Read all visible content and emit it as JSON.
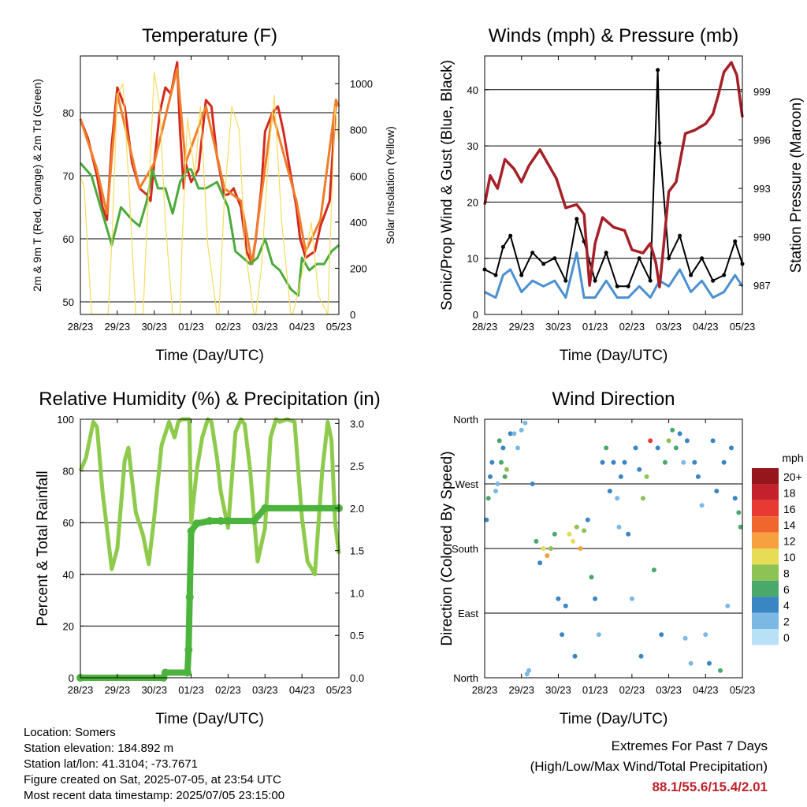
{
  "chart_data": [
    {
      "type": "line",
      "title": "Temperature (F)",
      "xlabel": "Time (Day/UTC)",
      "ylabel": "2m & 9m T (Red, Orange) & 2m Td (Green)",
      "ylabel_right": "Solar Insolation (Yellow)",
      "x_ticks": [
        "28/23",
        "29/23",
        "30/23",
        "01/23",
        "02/23",
        "03/23",
        "04/23",
        "05/23"
      ],
      "ylim": [
        48,
        89
      ],
      "y_ticks": [
        50,
        60,
        70,
        80
      ],
      "ylim_right": [
        0,
        1120
      ],
      "y_ticks_right": [
        0,
        200,
        400,
        600,
        800,
        1000
      ],
      "grid": "horizontal",
      "series": [
        {
          "color": "#d42a1e",
          "axis": "left",
          "x": [
            0.0,
            0.2,
            0.45,
            0.6,
            0.72,
            0.85,
            1.0,
            1.2,
            1.4,
            1.6,
            1.8,
            1.9,
            2.0,
            2.15,
            2.3,
            2.45,
            2.55,
            2.62,
            2.7,
            2.8,
            2.85,
            3.0,
            3.2,
            3.4,
            3.55,
            3.7,
            3.9,
            4.0,
            4.15,
            4.35,
            4.5,
            4.65,
            4.75,
            4.9,
            5.0,
            5.2,
            5.35,
            5.5,
            5.7,
            5.85,
            5.95,
            6.1,
            6.35,
            6.5,
            6.75,
            6.92,
            7.0
          ],
          "y": [
            79,
            76,
            70,
            65,
            63,
            75,
            84,
            81,
            72,
            68,
            67,
            66,
            72,
            80,
            84,
            83,
            86,
            88,
            77,
            68,
            72,
            69,
            71,
            82,
            81,
            73,
            67,
            67,
            68,
            65,
            58,
            56,
            60,
            68,
            77,
            80,
            81,
            77,
            70,
            65,
            60,
            57,
            58,
            62,
            66,
            82,
            81
          ]
        },
        {
          "color": "#f07d2a",
          "axis": "left",
          "x": [
            0.0,
            0.45,
            0.72,
            1.0,
            1.6,
            2.0,
            2.62,
            2.85,
            3.4,
            3.9,
            4.35,
            4.65,
            5.2,
            5.85,
            6.1,
            6.5,
            6.92,
            7.0
          ],
          "y": [
            79,
            71,
            64,
            83,
            68,
            72,
            87,
            72,
            81,
            68,
            66,
            56,
            80,
            66,
            58,
            63,
            82,
            81
          ]
        },
        {
          "color": "#4aaa3a",
          "axis": "left",
          "x": [
            0.0,
            0.3,
            0.6,
            0.85,
            1.1,
            1.4,
            1.6,
            1.8,
            1.95,
            2.1,
            2.3,
            2.5,
            2.7,
            2.9,
            3.0,
            3.2,
            3.4,
            3.7,
            4.0,
            4.2,
            4.4,
            4.6,
            4.8,
            5.0,
            5.2,
            5.4,
            5.7,
            5.9,
            6.0,
            6.2,
            6.4,
            6.6,
            6.8,
            7.0
          ],
          "y": [
            72,
            70,
            64,
            59,
            65,
            63,
            62,
            66,
            71,
            68,
            68,
            64,
            69,
            71,
            71,
            68,
            68,
            69,
            65,
            58,
            57,
            56,
            57,
            60,
            56,
            55,
            52,
            51,
            57,
            55,
            56,
            56,
            58,
            59
          ]
        },
        {
          "color": "#f7dc5e",
          "axis": "right",
          "x": [
            0.0,
            0.1,
            0.3,
            0.5,
            0.65,
            0.75,
            0.85,
            1.0,
            1.15,
            1.3,
            1.5,
            1.7,
            1.75,
            1.9,
            2.0,
            2.15,
            2.3,
            2.5,
            2.7,
            2.75,
            2.9,
            3.1,
            3.25,
            3.45,
            3.7,
            3.75,
            3.9,
            4.1,
            4.3,
            4.45,
            4.7,
            4.75,
            4.9,
            5.1,
            5.25,
            5.45,
            5.7,
            5.75,
            5.9,
            6.1,
            6.25,
            6.45,
            6.7,
            6.75,
            6.9,
            7.0
          ],
          "y": [
            600,
            550,
            0,
            0,
            0,
            0,
            300,
            950,
            1000,
            600,
            0,
            0,
            200,
            700,
            1050,
            900,
            400,
            0,
            0,
            300,
            850,
            600,
            900,
            300,
            0,
            0,
            500,
            900,
            800,
            300,
            0,
            0,
            200,
            700,
            950,
            400,
            0,
            0,
            100,
            250,
            400,
            80,
            0,
            250,
            900,
            750
          ]
        }
      ]
    },
    {
      "type": "line",
      "title": "Winds (mph) & Pressure (mb)",
      "xlabel": "Time (Day/UTC)",
      "ylabel": "Sonic/Prop Wind & Gust (Blue, Black)",
      "ylabel_right": "Station Pressure (Maroon)",
      "x_ticks": [
        "28/23",
        "29/23",
        "30/23",
        "01/23",
        "02/23",
        "03/23",
        "04/23",
        "05/23"
      ],
      "ylim": [
        0,
        46
      ],
      "y_ticks": [
        0,
        10,
        20,
        30,
        40
      ],
      "ylim_right": [
        985.2,
        1001.2
      ],
      "y_ticks_right": [
        987,
        990,
        993,
        996,
        999
      ],
      "grid": "horizontal",
      "series": [
        {
          "color": "#000000",
          "axis": "left",
          "marker": "dot",
          "x": [
            0.0,
            0.3,
            0.5,
            0.7,
            1.0,
            1.3,
            1.6,
            1.9,
            2.2,
            2.5,
            2.7,
            3.0,
            3.3,
            3.6,
            3.9,
            4.2,
            4.5,
            4.7,
            4.75,
            5.0,
            5.3,
            5.6,
            5.9,
            6.2,
            6.5,
            6.8,
            7.0
          ],
          "y": [
            8,
            7,
            12,
            14,
            7,
            11,
            9,
            10,
            6,
            17,
            13,
            6,
            11,
            5,
            5,
            10,
            6,
            43.5,
            30.5,
            10,
            14,
            7,
            10,
            6,
            7,
            13,
            9
          ]
        },
        {
          "color": "#4a90d0",
          "axis": "left",
          "x": [
            0.0,
            0.3,
            0.5,
            0.7,
            1.0,
            1.3,
            1.6,
            1.9,
            2.2,
            2.5,
            2.7,
            3.0,
            3.3,
            3.6,
            3.9,
            4.2,
            4.5,
            4.75,
            5.0,
            5.3,
            5.6,
            5.9,
            6.2,
            6.5,
            6.8,
            7.0
          ],
          "y": [
            4,
            3,
            7,
            8,
            4,
            6,
            5,
            6,
            3,
            11,
            3,
            3,
            6,
            3,
            3,
            5,
            3,
            6,
            5,
            8,
            4,
            6,
            3,
            4,
            7,
            5
          ]
        },
        {
          "color": "#a52028",
          "axis": "right",
          "x": [
            0.0,
            0.15,
            0.35,
            0.55,
            0.8,
            1.0,
            1.2,
            1.5,
            1.7,
            1.95,
            2.2,
            2.5,
            2.7,
            2.85,
            3.0,
            3.2,
            3.5,
            3.8,
            4.0,
            4.3,
            4.5,
            4.65,
            4.75,
            4.85,
            5.0,
            5.2,
            5.45,
            5.7,
            6.0,
            6.2,
            6.35,
            6.5,
            6.7,
            6.85,
            7.0
          ],
          "y": [
            992.0,
            993.8,
            993.0,
            994.8,
            994.2,
            993.4,
            994.4,
            995.4,
            994.6,
            993.6,
            991.8,
            992.0,
            991.4,
            987.0,
            989.6,
            991.2,
            990.6,
            990.4,
            989.2,
            989.0,
            989.6,
            988.4,
            986.9,
            989.2,
            992.8,
            993.4,
            996.4,
            996.6,
            997.0,
            997.6,
            998.8,
            1000.2,
            1000.8,
            1000.0,
            997.4
          ]
        }
      ]
    },
    {
      "type": "line",
      "title": "Relative Humidity (%) & Precipitation (in)",
      "xlabel": "Time (Day/UTC)",
      "ylabel": "Percent & Total Rainfall",
      "x_ticks": [
        "28/23",
        "29/23",
        "30/23",
        "01/23",
        "02/23",
        "03/23",
        "04/23",
        "05/23"
      ],
      "ylim": [
        0,
        100
      ],
      "y_ticks": [
        0,
        20,
        40,
        60,
        80,
        100
      ],
      "ylim_right": [
        0,
        3.05
      ],
      "y_ticks_right": [
        "0.0",
        "0.5",
        "1.0",
        "1.5",
        "2.0",
        "2.5",
        "3.0"
      ],
      "grid": "horizontal",
      "series": [
        {
          "color": "#8ecb4c",
          "axis": "left",
          "x": [
            0.0,
            0.15,
            0.35,
            0.45,
            0.6,
            0.85,
            1.0,
            1.2,
            1.3,
            1.5,
            1.7,
            1.85,
            2.0,
            2.2,
            2.4,
            2.55,
            2.65,
            2.75,
            2.95,
            3.0,
            3.15,
            3.3,
            3.45,
            3.55,
            3.7,
            3.8,
            4.0,
            4.2,
            4.35,
            4.45,
            4.6,
            4.8,
            5.0,
            5.15,
            5.3,
            5.4,
            5.6,
            5.8,
            6.0,
            6.15,
            6.35,
            6.55,
            6.7,
            6.8,
            6.9,
            7.0
          ],
          "y": [
            80,
            85,
            99,
            97,
            72,
            42,
            50,
            84,
            89,
            64,
            55,
            44,
            62,
            90,
            99,
            93,
            99,
            100,
            100,
            60,
            80,
            93,
            100,
            99,
            85,
            72,
            58,
            95,
            100,
            98,
            80,
            45,
            58,
            93,
            100,
            99,
            100,
            99,
            62,
            45,
            40,
            80,
            99,
            92,
            60,
            48
          ]
        },
        {
          "color": "#4cb43c",
          "axis": "right",
          "marker": "dot",
          "x": [
            0.0,
            2.25,
            2.3,
            2.9,
            2.93,
            2.96,
            3.0,
            3.15,
            3.5,
            3.8,
            4.0,
            4.7,
            5.0,
            7.0
          ],
          "y": [
            0.0,
            0.0,
            0.06,
            0.06,
            0.33,
            0.95,
            1.73,
            1.82,
            1.85,
            1.85,
            1.85,
            1.85,
            2.0,
            2.0
          ]
        }
      ]
    },
    {
      "type": "scatter",
      "title": "Wind Direction",
      "xlabel": "Time (Day/UTC)",
      "ylabel": "Direction (Colored By Speed)",
      "x_ticks": [
        "28/23",
        "29/23",
        "30/23",
        "01/23",
        "02/23",
        "03/23",
        "04/23",
        "05/23"
      ],
      "y_ticks": [
        "North",
        "East",
        "South",
        "West",
        "North"
      ],
      "ylim": [
        0,
        360
      ],
      "grid": "horizontal",
      "legend_title": "mph",
      "legend_labels": [
        "20+",
        "18",
        "16",
        "14",
        "12",
        "10",
        "8",
        "6",
        "4",
        "2",
        "0"
      ],
      "legend_colors": [
        "#96171b",
        "#c4212a",
        "#e83a32",
        "#f0672e",
        "#f6a040",
        "#e6dc55",
        "#8dc255",
        "#4aa86a",
        "#3a86c2",
        "#7cb8e4",
        "#b8e0f6"
      ],
      "points": [
        [
          0.05,
          220,
          4
        ],
        [
          0.1,
          250,
          6
        ],
        [
          0.15,
          280,
          3
        ],
        [
          0.2,
          300,
          4
        ],
        [
          0.3,
          260,
          2
        ],
        [
          0.4,
          330,
          6
        ],
        [
          0.45,
          300,
          6
        ],
        [
          0.5,
          320,
          4
        ],
        [
          0.55,
          280,
          5
        ],
        [
          0.6,
          290,
          8
        ],
        [
          0.7,
          340,
          4
        ],
        [
          0.8,
          340,
          2
        ],
        [
          0.9,
          320,
          2
        ],
        [
          1.0,
          345,
          1
        ],
        [
          1.1,
          355,
          2
        ],
        [
          1.2,
          10,
          2
        ],
        [
          1.3,
          270,
          3
        ],
        [
          1.4,
          190,
          5
        ],
        [
          1.5,
          160,
          4
        ],
        [
          1.6,
          180,
          10
        ],
        [
          1.7,
          170,
          12
        ],
        [
          1.8,
          180,
          8
        ],
        [
          1.9,
          200,
          6
        ],
        [
          2.0,
          110,
          4
        ],
        [
          2.1,
          60,
          3
        ],
        [
          2.2,
          100,
          3
        ],
        [
          2.3,
          200,
          10
        ],
        [
          2.4,
          190,
          9
        ],
        [
          2.5,
          210,
          8
        ],
        [
          2.6,
          180,
          12
        ],
        [
          2.7,
          205,
          8
        ],
        [
          2.8,
          220,
          3
        ],
        [
          2.9,
          140,
          5
        ],
        [
          3.0,
          110,
          3
        ],
        [
          3.1,
          60,
          2
        ],
        [
          3.2,
          300,
          4
        ],
        [
          3.3,
          320,
          5
        ],
        [
          3.4,
          260,
          3
        ],
        [
          3.5,
          300,
          4
        ],
        [
          3.6,
          250,
          2
        ],
        [
          3.7,
          280,
          3
        ],
        [
          3.8,
          300,
          4
        ],
        [
          3.9,
          200,
          3
        ],
        [
          4.0,
          110,
          2
        ],
        [
          4.1,
          320,
          4
        ],
        [
          4.2,
          290,
          3
        ],
        [
          4.3,
          250,
          7
        ],
        [
          4.4,
          280,
          8
        ],
        [
          4.5,
          330,
          16
        ],
        [
          4.6,
          150,
          6
        ],
        [
          4.7,
          320,
          3
        ],
        [
          4.8,
          60,
          4
        ],
        [
          4.9,
          300,
          6
        ],
        [
          5.0,
          330,
          8
        ],
        [
          5.1,
          345,
          6
        ],
        [
          5.2,
          320,
          5
        ],
        [
          5.3,
          340,
          4
        ],
        [
          5.4,
          300,
          2
        ],
        [
          5.5,
          330,
          3
        ],
        [
          5.6,
          20,
          2
        ],
        [
          5.7,
          300,
          3
        ],
        [
          5.8,
          280,
          4
        ],
        [
          5.9,
          240,
          2
        ],
        [
          6.0,
          60,
          2
        ],
        [
          6.1,
          20,
          3
        ],
        [
          6.2,
          330,
          4
        ],
        [
          6.3,
          260,
          3
        ],
        [
          6.4,
          10,
          5
        ],
        [
          6.5,
          300,
          3
        ],
        [
          6.6,
          100,
          2
        ],
        [
          6.7,
          320,
          4
        ],
        [
          6.8,
          250,
          4
        ],
        [
          6.9,
          230,
          6
        ],
        [
          6.95,
          210,
          5
        ],
        [
          5.45,
          55,
          2
        ],
        [
          4.25,
          30,
          3
        ],
        [
          3.65,
          210,
          2
        ],
        [
          2.45,
          30,
          4
        ],
        [
          1.15,
          5,
          2
        ],
        [
          0.35,
          270,
          2
        ]
      ]
    }
  ],
  "info": {
    "location": "Location: Somers",
    "elevation": "Station elevation: 184.892 m",
    "latlon": "Station lat/lon: 41.3104; -73.7671",
    "created": "Figure created on Sat, 2025-07-05, at 23:54 UTC",
    "latest": "Most recent data timestamp: 2025/07/05 23:15:00"
  },
  "extremes": {
    "title": "Extremes For Past 7 Days",
    "subtitle": "(High/Low/Max Wind/Total Precipitation)",
    "values": "88.1/55.6/15.4/2.01"
  }
}
